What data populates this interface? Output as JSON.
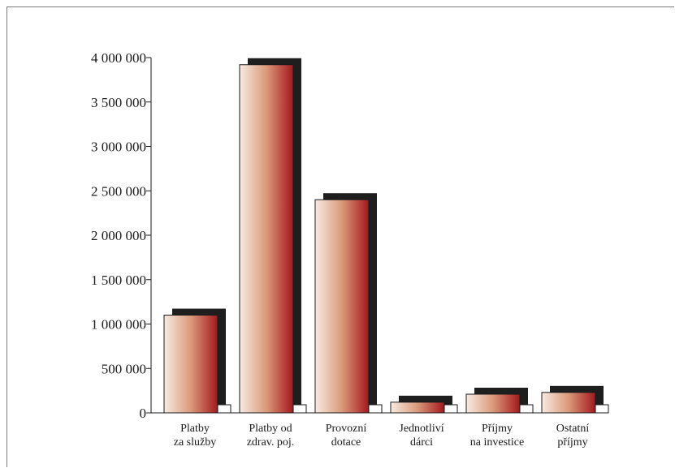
{
  "chart_data": {
    "type": "bar",
    "title": "",
    "xlabel": "",
    "ylabel": "",
    "categories": [
      [
        "Platby",
        "za služby"
      ],
      [
        "Platby od",
        "zdrav. poj."
      ],
      [
        "Provozní",
        "dotace"
      ],
      [
        "Jednotliví",
        "dárci"
      ],
      [
        "Příjmy",
        "na investice"
      ],
      [
        "Ostatní",
        "příjmy"
      ]
    ],
    "values": [
      1100000,
      3920000,
      2400000,
      120000,
      210000,
      230000
    ],
    "ylim": [
      0,
      4000000
    ],
    "yticks": [
      0,
      500000,
      1000000,
      1500000,
      2000000,
      2500000,
      3000000,
      3500000,
      4000000
    ],
    "ytick_labels": [
      "0",
      "500 000",
      "1 000 000",
      "1 500 000",
      "2 000 000",
      "2 500 000",
      "3 000 000",
      "3 500 000",
      "4 000 000"
    ],
    "grid": false,
    "legend": "none",
    "colors": {
      "bar_gradient_start": "#f7ebe2",
      "bar_gradient_mid": "#d99a7a",
      "bar_gradient_end": "#a4171c",
      "shadow": "#1e1e1e",
      "axis": "#1a1a1a"
    }
  }
}
